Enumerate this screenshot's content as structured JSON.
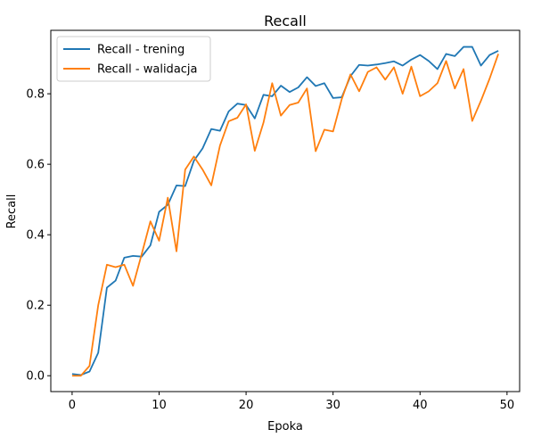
{
  "chart_data": {
    "type": "line",
    "title": "Recall",
    "xlabel": "Epoka",
    "ylabel": "Recall",
    "xlim": [
      -2.45,
      51.45
    ],
    "ylim": [
      -0.045,
      0.98
    ],
    "xticks": [
      0,
      10,
      20,
      30,
      40,
      50
    ],
    "yticks": [
      0.0,
      0.2,
      0.4,
      0.6,
      0.8
    ],
    "ytick_labels": [
      "0.0",
      "0.2",
      "0.4",
      "0.6",
      "0.8"
    ],
    "grid": false,
    "legend_position": "upper left",
    "x": [
      0,
      1,
      2,
      3,
      4,
      5,
      6,
      7,
      8,
      9,
      10,
      11,
      12,
      13,
      14,
      15,
      16,
      17,
      18,
      19,
      20,
      21,
      22,
      23,
      24,
      25,
      26,
      27,
      28,
      29,
      30,
      31,
      32,
      33,
      34,
      35,
      36,
      37,
      38,
      39,
      40,
      41,
      42,
      43,
      44,
      45,
      46,
      47,
      48,
      49
    ],
    "series": [
      {
        "name": "Recall - trening",
        "color": "#1f77b4",
        "values": [
          0.005,
          0.002,
          0.012,
          0.065,
          0.25,
          0.27,
          0.335,
          0.34,
          0.338,
          0.37,
          0.465,
          0.485,
          0.54,
          0.538,
          0.61,
          0.645,
          0.7,
          0.695,
          0.75,
          0.772,
          0.768,
          0.73,
          0.797,
          0.793,
          0.823,
          0.805,
          0.818,
          0.847,
          0.822,
          0.83,
          0.788,
          0.79,
          0.85,
          0.882,
          0.88,
          0.883,
          0.887,
          0.892,
          0.88,
          0.897,
          0.91,
          0.893,
          0.87,
          0.913,
          0.907,
          0.933,
          0.933,
          0.88,
          0.91,
          0.922
        ]
      },
      {
        "name": "Recall - walidacja",
        "color": "#ff7f0e",
        "values": [
          0.0,
          0.0,
          0.028,
          0.2,
          0.315,
          0.308,
          0.315,
          0.255,
          0.345,
          0.438,
          0.383,
          0.505,
          0.353,
          0.585,
          0.622,
          0.585,
          0.54,
          0.653,
          0.722,
          0.732,
          0.77,
          0.638,
          0.718,
          0.83,
          0.738,
          0.768,
          0.775,
          0.815,
          0.637,
          0.698,
          0.693,
          0.785,
          0.855,
          0.807,
          0.862,
          0.875,
          0.84,
          0.875,
          0.8,
          0.877,
          0.793,
          0.807,
          0.83,
          0.893,
          0.815,
          0.87,
          0.723,
          0.78,
          0.843,
          0.913
        ]
      }
    ]
  }
}
